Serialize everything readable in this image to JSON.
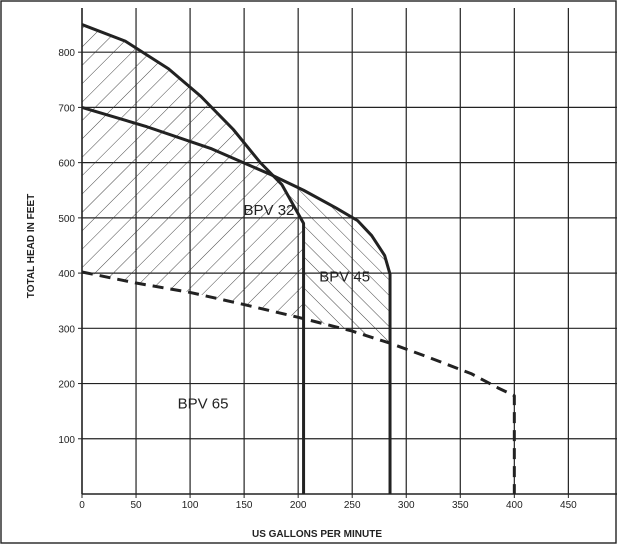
{
  "chart_data": {
    "type": "line",
    "xlabel": "US GALLONS PER MINUTE",
    "ylabel": "TOTAL HEAD IN FEET",
    "xlim": [
      0,
      495
    ],
    "ylim": [
      0,
      880
    ],
    "x_ticks": [
      0,
      50,
      100,
      150,
      200,
      250,
      300,
      350,
      400,
      450
    ],
    "y_ticks": [
      100,
      200,
      300,
      400,
      500,
      600,
      700,
      800
    ],
    "x_grid_step": 50,
    "y_grid_step": 100,
    "grid": true,
    "colors": {
      "line": "#222222",
      "grid": "#222222",
      "hatch": "#333333"
    },
    "series": [
      {
        "style": "solid",
        "x": [
          0,
          40,
          80,
          110,
          140,
          165,
          185,
          205,
          205
        ],
        "y": [
          850,
          820,
          770,
          720,
          660,
          600,
          560,
          490,
          0
        ]
      },
      {
        "style": "solid",
        "x": [
          0,
          60,
          120,
          175,
          205,
          235,
          255,
          268,
          280,
          285,
          285
        ],
        "y": [
          700,
          665,
          625,
          578,
          550,
          518,
          495,
          468,
          432,
          398,
          0
        ]
      },
      {
        "style": "dashed",
        "x": [
          0,
          50,
          100,
          150,
          200,
          250,
          285,
          320,
          360,
          385,
          400,
          400
        ],
        "y": [
          402,
          382,
          365,
          343,
          320,
          295,
          273,
          248,
          218,
          192,
          178,
          0
        ]
      }
    ],
    "regions": [
      {
        "label": "BPV 32",
        "label_at": [
          173,
          505
        ],
        "hatch": "forward"
      },
      {
        "label": "BPV 45",
        "label_at": [
          243,
          385
        ],
        "hatch": "backward"
      },
      {
        "label": "BPV 65",
        "label_at": [
          112,
          155
        ],
        "hatch": "none"
      }
    ]
  }
}
